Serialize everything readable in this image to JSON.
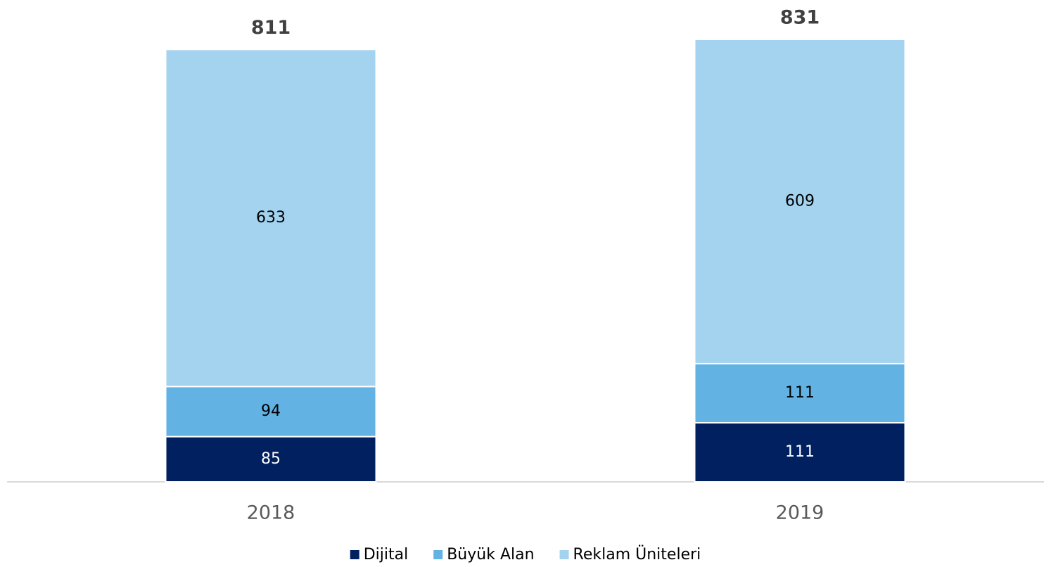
{
  "chart_data": {
    "type": "stacked_bar",
    "categories": [
      "2018",
      "2019"
    ],
    "series": [
      {
        "name": "Dijital",
        "color": "#002060",
        "values": [
          85,
          111
        ]
      },
      {
        "name": "Büyük Alan",
        "color": "#62b3e4",
        "values": [
          94,
          111
        ]
      },
      {
        "name": "Reklam Üniteleri",
        "color": "#a3d3ef",
        "values": [
          633,
          609
        ]
      }
    ],
    "totals": [
      811,
      831
    ],
    "legend": "bottom"
  }
}
